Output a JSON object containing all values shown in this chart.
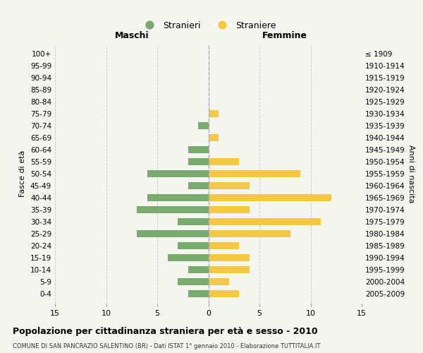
{
  "age_groups": [
    "100+",
    "95-99",
    "90-94",
    "85-89",
    "80-84",
    "75-79",
    "70-74",
    "65-69",
    "60-64",
    "55-59",
    "50-54",
    "45-49",
    "40-44",
    "35-39",
    "30-34",
    "25-29",
    "20-24",
    "15-19",
    "10-14",
    "5-9",
    "0-4"
  ],
  "birth_years": [
    "≤ 1909",
    "1910-1914",
    "1915-1919",
    "1920-1924",
    "1925-1929",
    "1930-1934",
    "1935-1939",
    "1940-1944",
    "1945-1949",
    "1950-1954",
    "1955-1959",
    "1960-1964",
    "1965-1969",
    "1970-1974",
    "1975-1979",
    "1980-1984",
    "1985-1989",
    "1990-1994",
    "1995-1999",
    "2000-2004",
    "2005-2009"
  ],
  "maschi": [
    0,
    0,
    0,
    0,
    0,
    0,
    1,
    0,
    2,
    2,
    6,
    2,
    6,
    7,
    3,
    7,
    3,
    4,
    2,
    3,
    2
  ],
  "femmine": [
    0,
    0,
    0,
    0,
    0,
    1,
    0,
    1,
    0,
    3,
    9,
    4,
    12,
    4,
    11,
    8,
    3,
    4,
    4,
    2,
    3
  ],
  "color_maschi": "#7aab6e",
  "color_femmine": "#f5c842",
  "title": "Popolazione per cittadinanza straniera per età e sesso - 2010",
  "subtitle": "COMUNE DI SAN PANCRAZIO SALENTINO (BR) - Dati ISTAT 1° gennaio 2010 - Elaborazione TUTTITALIA.IT",
  "label_maschi": "Maschi",
  "label_femmine": "Femmine",
  "legend_stranieri": "Stranieri",
  "legend_straniere": "Straniere",
  "ylabel_left": "Fasce di età",
  "ylabel_right": "Anni di nascita",
  "xlim": 15,
  "background_color": "#f5f5f0",
  "grid_color": "#cccccc"
}
